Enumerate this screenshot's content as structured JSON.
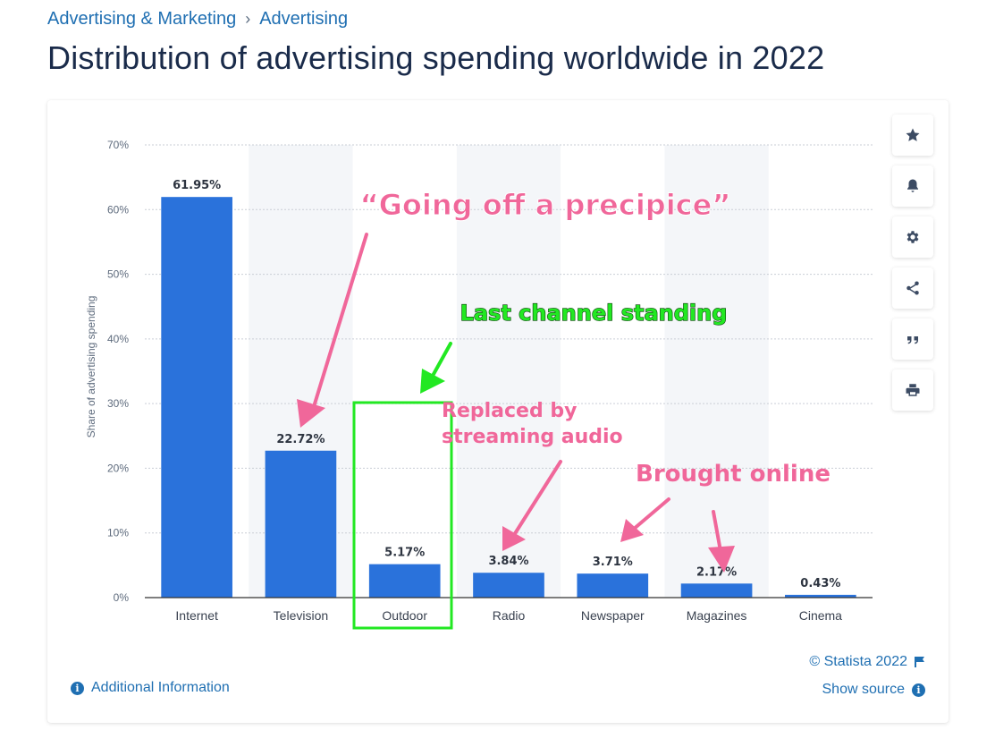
{
  "breadcrumb": {
    "items": [
      "Advertising & Marketing",
      "Advertising"
    ],
    "separator": "›"
  },
  "page_title": "Distribution of advertising spending worldwide in 2022",
  "tools": {
    "icons": [
      "star-icon",
      "bell-icon",
      "gear-icon",
      "share-icon",
      "quote-icon",
      "print-icon"
    ]
  },
  "footer": {
    "additional_info": "Additional Information",
    "copyright": "© Statista 2022",
    "show_source": "Show source"
  },
  "annotations": {
    "precipice": "“Going off a precipice”",
    "last_channel": "Last channel standing",
    "replaced_line1": "Replaced by",
    "replaced_line2": "streaming audio",
    "brought_online": "Brought online",
    "color_pink": "#f0679a",
    "color_green": "#22e822"
  },
  "chart_data": {
    "type": "bar",
    "categories": [
      "Internet",
      "Television",
      "Outdoor",
      "Radio",
      "Newspaper",
      "Magazines",
      "Cinema"
    ],
    "values": [
      61.95,
      22.72,
      5.17,
      3.84,
      3.71,
      2.17,
      0.43
    ],
    "data_labels": [
      "61.95%",
      "22.72%",
      "5.17%",
      "3.84%",
      "3.71%",
      "2.17%",
      "0.43%"
    ],
    "ylabel": "Share of advertising spending",
    "ylim": [
      0,
      70
    ],
    "yticks": [
      0,
      10,
      20,
      30,
      40,
      50,
      60,
      70
    ],
    "ytick_labels": [
      "0%",
      "10%",
      "20%",
      "30%",
      "40%",
      "50%",
      "60%",
      "70%"
    ],
    "grid": true,
    "bar_color": "#2a72db",
    "alt_band_color": "#f4f6f9"
  }
}
